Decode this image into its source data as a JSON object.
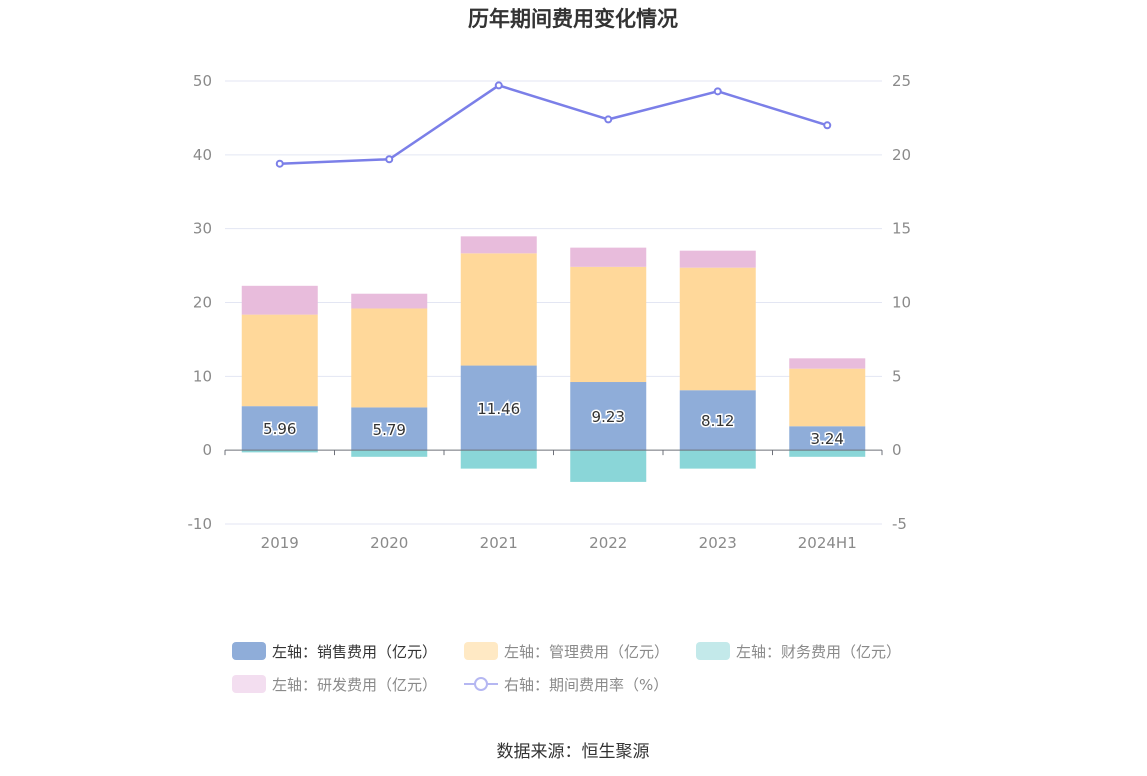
{
  "chart_data": {
    "type": "bar",
    "title": "历年期间费用变化情况",
    "categories": [
      "2019",
      "2020",
      "2021",
      "2022",
      "2023",
      "2024H1"
    ],
    "stacked": true,
    "left_axis": {
      "ylim": [
        -10,
        50
      ],
      "ticks": [
        "-10",
        "0",
        "10",
        "20",
        "30",
        "40",
        "50"
      ]
    },
    "right_axis": {
      "ylim": [
        -5,
        25
      ],
      "ticks": [
        "-5",
        "0",
        "5",
        "10",
        "15",
        "20",
        "25"
      ]
    },
    "grid": true,
    "legend_position": "bottom",
    "series": [
      {
        "name": "左轴：销售费用（亿元）",
        "axis": "left",
        "type": "bar",
        "color": "#8fadd9",
        "values": [
          5.96,
          5.79,
          11.46,
          9.23,
          8.12,
          3.24
        ],
        "labels": [
          "5.96",
          "5.79",
          "11.46",
          "9.23",
          "8.12",
          "3.24"
        ]
      },
      {
        "name": "左轴：管理费用（亿元）",
        "axis": "left",
        "type": "bar",
        "color": "#ffd89a",
        "values": [
          12.4,
          13.4,
          15.2,
          15.6,
          16.6,
          7.8
        ]
      },
      {
        "name": "左轴：财务费用（亿元）",
        "axis": "left",
        "type": "bar",
        "color": "#8ad6d8",
        "values": [
          -0.3,
          -0.9,
          -2.5,
          -4.3,
          -2.5,
          -0.9
        ]
      },
      {
        "name": "左轴：研发费用（亿元）",
        "axis": "left",
        "type": "bar",
        "color": "#e8bcdc",
        "values": [
          3.9,
          2.0,
          2.3,
          2.6,
          2.3,
          1.4
        ]
      },
      {
        "name": "右轴：期间费用率（%）",
        "axis": "right",
        "type": "line",
        "color": "#7b7fe8",
        "values": [
          19.4,
          19.7,
          24.7,
          22.4,
          24.3,
          22.0
        ]
      }
    ]
  },
  "legend": {
    "items": [
      {
        "label": "左轴：销售费用（亿元）",
        "color": "#8fadd9",
        "marker": "bar",
        "active": true
      },
      {
        "label": "左轴：管理费用（亿元）",
        "color": "#ffe9c4",
        "marker": "bar",
        "active": false
      },
      {
        "label": "左轴：财务费用（亿元）",
        "color": "#c3e9ea",
        "marker": "bar",
        "active": false
      },
      {
        "label": "左轴：研发费用（亿元）",
        "color": "#f3def0",
        "marker": "bar",
        "active": false
      },
      {
        "label": "右轴：期间费用率（%）",
        "color": "#b5b7f2",
        "marker": "line",
        "active": false
      }
    ]
  },
  "source": "数据来源：恒生聚源"
}
